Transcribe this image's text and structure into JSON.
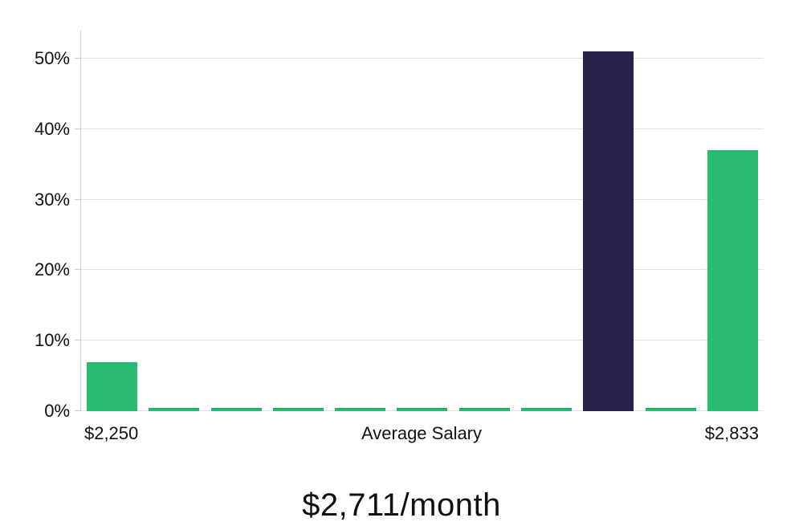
{
  "chart_data": {
    "type": "bar",
    "title": "$2,711/month",
    "xlabel": "",
    "ylabel": "",
    "ylim": [
      0,
      54
    ],
    "grid": true,
    "legend": null,
    "values": [
      7,
      0.2,
      0.2,
      0.2,
      0.2,
      0.2,
      0.2,
      0.2,
      51,
      0.2,
      37
    ],
    "highlight_index": 8,
    "y_axis": {
      "tick_values": [
        0,
        10,
        20,
        30,
        40,
        50
      ],
      "tick_labels": [
        "0%",
        "10%",
        "20%",
        "30%",
        "40%",
        "50%"
      ]
    },
    "x_axis": {
      "labels": [
        {
          "text": "$2,250",
          "anchor": "bar",
          "bar_index": 0
        },
        {
          "text": "Average Salary",
          "anchor": "center"
        },
        {
          "text": "$2,833",
          "anchor": "bar",
          "bar_index": 10
        }
      ]
    },
    "colors": {
      "bar": "#2abb72",
      "bar_edge_dark": "#1f9a61",
      "bar_highlight": "#282449",
      "grid": "#dedede",
      "axis": "#cccccc",
      "text": "#111111",
      "title": "#111111",
      "background": "#ffffff"
    }
  }
}
